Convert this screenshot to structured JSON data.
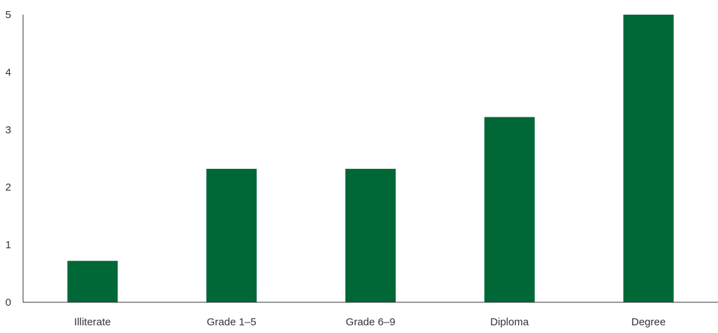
{
  "chart_data": {
    "type": "bar",
    "categories": [
      "Illiterate",
      "Grade 1–5",
      "Grade 6–9",
      "Diploma",
      "Degree"
    ],
    "values": [
      0.72,
      2.32,
      2.32,
      3.22,
      5.0
    ],
    "title": "",
    "xlabel": "",
    "ylabel": "",
    "ylim": [
      0,
      5
    ],
    "yticks": [
      "0",
      "1",
      "2",
      "3",
      "4",
      "5"
    ],
    "grid": false,
    "legend": "none",
    "bar_color": "#006837",
    "axis_color": "#333333"
  }
}
